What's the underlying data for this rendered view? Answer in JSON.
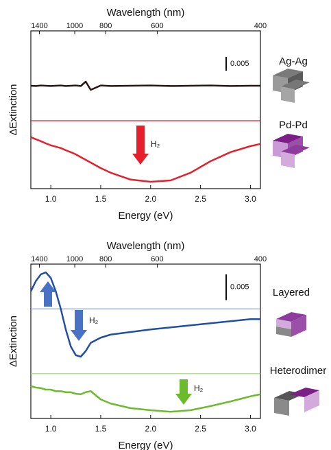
{
  "chart_data": [
    {
      "type": "line",
      "x2_label": "Wavelength (nm)",
      "x_label": "Energy (eV)",
      "y_label": "ΔExtinction",
      "xlim": [
        0.8,
        3.1
      ],
      "xticks": [
        {
          "value": 1,
          "label": "1.0"
        },
        1.5,
        {
          "value": 2,
          "label": "2.0"
        },
        2.5,
        {
          "value": 3,
          "label": "3.0"
        }
      ],
      "x2ticks": [
        1400,
        1000,
        800,
        600,
        400
      ],
      "ylim": [
        0,
        0.0575
      ],
      "x": [
        0.8,
        0.85,
        0.9,
        0.95,
        1.0,
        1.05,
        1.1,
        1.15,
        1.2,
        1.25,
        1.3,
        1.35,
        1.4,
        1.5,
        1.6,
        1.8,
        2.0,
        2.2,
        2.4,
        2.6,
        2.8,
        3.0,
        3.1
      ],
      "series": [
        {
          "name": "Ag-Ag",
          "color": "#231815",
          "values": [
            0.0375,
            0.0374,
            0.0376,
            0.0375,
            0.0374,
            0.0375,
            0.0376,
            0.0374,
            0.0375,
            0.0376,
            0.0374,
            0.039,
            0.036,
            0.0376,
            0.0374,
            0.0375,
            0.0376,
            0.0374,
            0.0375,
            0.0376,
            0.0374,
            0.0375,
            0.0375
          ]
        },
        {
          "name": "Pd-Pd",
          "color": "#e61f2a",
          "values": [
            0.0188,
            0.018,
            0.0173,
            0.0165,
            0.0158,
            0.0153,
            0.0148,
            0.014,
            0.0133,
            0.0125,
            0.0115,
            0.0105,
            0.0095,
            0.0075,
            0.0058,
            0.0033,
            0.0025,
            0.003,
            0.0058,
            0.01,
            0.0133,
            0.0155,
            0.0163
          ]
        }
      ],
      "reference_lines": [
        {
          "value": 0.02475,
          "color": "#e61f2a"
        }
      ],
      "scale_bar": 0.005,
      "annotation": "H₂"
    },
    {
      "type": "line",
      "x2_label": "Wavelength (nm)",
      "x_label": "Energy (eV)",
      "y_label": "ΔExtinction",
      "xlim": [
        0.8,
        3.1
      ],
      "xticks": [
        {
          "value": 1,
          "label": "1.0"
        },
        1.5,
        {
          "value": 2,
          "label": "2.0"
        },
        2.5,
        {
          "value": 3,
          "label": "3.0"
        }
      ],
      "x2ticks": [
        1400,
        1000,
        800,
        600,
        400
      ],
      "ylim": [
        0,
        0.03
      ],
      "x": [
        0.8,
        0.85,
        0.9,
        0.95,
        1.0,
        1.05,
        1.1,
        1.15,
        1.2,
        1.25,
        1.3,
        1.35,
        1.4,
        1.5,
        1.6,
        1.8,
        2.0,
        2.2,
        2.4,
        2.6,
        2.8,
        3.0,
        3.1
      ],
      "series": [
        {
          "name": "Layered",
          "color": "#1f4ea3",
          "values": [
            0.0247,
            0.0267,
            0.028,
            0.0284,
            0.0273,
            0.0247,
            0.0213,
            0.0173,
            0.014,
            0.0123,
            0.012,
            0.0131,
            0.0147,
            0.0157,
            0.0163,
            0.0168,
            0.0173,
            0.0177,
            0.0181,
            0.0185,
            0.0189,
            0.0193,
            0.0193
          ]
        },
        {
          "name": "Heterodimer",
          "color": "#6cbb2d",
          "values": [
            0.0063,
            0.006,
            0.0059,
            0.0056,
            0.0056,
            0.0053,
            0.0053,
            0.0051,
            0.0051,
            0.0048,
            0.0047,
            0.0051,
            0.0053,
            0.0037,
            0.0029,
            0.002,
            0.0016,
            0.0013,
            0.0016,
            0.0024,
            0.0033,
            0.0043,
            0.0047
          ]
        }
      ],
      "reference_lines": [
        {
          "value": 0.0213,
          "color": "#8fa6d6"
        },
        {
          "value": 0.0087,
          "color": "#a9d68a"
        }
      ],
      "scale_bar": 0.005,
      "annotation": "H₂"
    }
  ]
}
